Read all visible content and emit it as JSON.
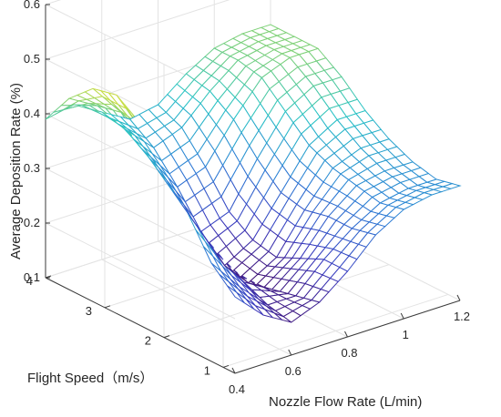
{
  "chart_data": {
    "type": "surface",
    "title": "",
    "xlabel": "Nozzle Flow Rate (L/min)",
    "ylabel": "Flight Speed（m/s）",
    "zlabel": "Average Deposition Rate (%)",
    "xlim": [
      0.4,
      1.2
    ],
    "ylim": [
      0.8,
      4
    ],
    "zlim": [
      0.1,
      0.6
    ],
    "x_ticks": [
      "0.4",
      "0.6",
      "0.8",
      "1",
      "1.2"
    ],
    "y_ticks": [
      "1",
      "2",
      "3",
      "4"
    ],
    "z_ticks": [
      "0.1",
      "0.2",
      "0.3",
      "0.4",
      "0.5",
      "0.6"
    ],
    "grid": true,
    "colormap": [
      "#440154",
      "#3b3bbf",
      "#2d7fd6",
      "#28c3c6",
      "#8fd36a",
      "#fde725"
    ],
    "x": [
      0.4,
      0.5,
      0.6,
      0.7,
      0.8,
      0.9,
      1.0,
      1.1,
      1.2
    ],
    "y": [
      0.8,
      1.2,
      1.6,
      2.0,
      2.4,
      2.8,
      3.2,
      3.6,
      4.0
    ],
    "z": [
      [
        0.24,
        0.19,
        0.16,
        0.18,
        0.22,
        0.27,
        0.3,
        0.31,
        0.31
      ],
      [
        0.28,
        0.22,
        0.17,
        0.17,
        0.22,
        0.26,
        0.29,
        0.3,
        0.3
      ],
      [
        0.35,
        0.26,
        0.19,
        0.16,
        0.2,
        0.26,
        0.3,
        0.31,
        0.31
      ],
      [
        0.42,
        0.31,
        0.21,
        0.15,
        0.18,
        0.25,
        0.31,
        0.33,
        0.33
      ],
      [
        0.47,
        0.36,
        0.25,
        0.16,
        0.19,
        0.26,
        0.33,
        0.36,
        0.36
      ],
      [
        0.5,
        0.41,
        0.29,
        0.2,
        0.22,
        0.3,
        0.37,
        0.4,
        0.4
      ],
      [
        0.49,
        0.43,
        0.33,
        0.26,
        0.28,
        0.35,
        0.41,
        0.43,
        0.43
      ],
      [
        0.45,
        0.42,
        0.36,
        0.31,
        0.33,
        0.38,
        0.42,
        0.43,
        0.43
      ],
      [
        0.39,
        0.4,
        0.37,
        0.34,
        0.35,
        0.39,
        0.42,
        0.43,
        0.43
      ]
    ]
  }
}
